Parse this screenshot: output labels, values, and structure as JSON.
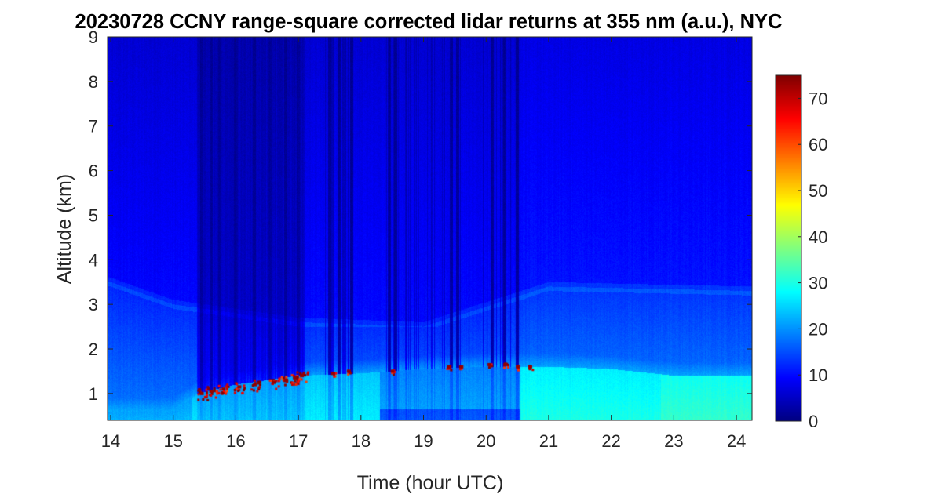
{
  "chart_data": {
    "type": "heatmap",
    "title": "20230728 CCNY range-square corrected lidar returns at 355 nm (a.u.), NYC",
    "xlabel": "Time (hour UTC)",
    "ylabel": "Altitude (km)",
    "xlim": [
      13.95,
      24.25
    ],
    "ylim": [
      0.4,
      9
    ],
    "x_ticks": [
      14,
      15,
      16,
      17,
      18,
      19,
      20,
      21,
      22,
      23,
      24
    ],
    "y_ticks": [
      1,
      2,
      3,
      4,
      5,
      6,
      7,
      8,
      9
    ],
    "colorbar": {
      "colormap": "jet",
      "range": [
        0,
        75
      ],
      "ticks": [
        0,
        10,
        20,
        30,
        40,
        50,
        60,
        70
      ],
      "placement": "right"
    },
    "grid": false,
    "features": {
      "boundary_layer_top_km": [
        {
          "time": 14.0,
          "altitude": 0.6
        },
        {
          "time": 15.0,
          "altitude": 0.6
        },
        {
          "time": 15.4,
          "altitude": 1.0
        },
        {
          "time": 16.0,
          "altitude": 1.2
        },
        {
          "time": 17.0,
          "altitude": 1.4
        },
        {
          "time": 18.0,
          "altitude": 1.45
        },
        {
          "time": 19.0,
          "altitude": 1.55
        },
        {
          "time": 20.0,
          "altitude": 1.6
        },
        {
          "time": 21.0,
          "altitude": 1.6
        },
        {
          "time": 22.0,
          "altitude": 1.55
        },
        {
          "time": 23.0,
          "altitude": 1.4
        },
        {
          "time": 24.25,
          "altitude": 1.4
        }
      ],
      "aerosol_layer_top_km": [
        {
          "time": 14.0,
          "altitude": 3.5
        },
        {
          "time": 15.0,
          "altitude": 3.0
        },
        {
          "time": 17.0,
          "altitude": 2.6
        },
        {
          "time": 19.0,
          "altitude": 2.5
        },
        {
          "time": 21.0,
          "altitude": 3.4
        },
        {
          "time": 24.25,
          "altitude": 3.3
        }
      ],
      "cloud_returns": [
        {
          "time": 15.45,
          "altitude": 1.0
        },
        {
          "time": 15.6,
          "altitude": 1.05
        },
        {
          "time": 15.8,
          "altitude": 1.1
        },
        {
          "time": 16.05,
          "altitude": 1.15
        },
        {
          "time": 16.3,
          "altitude": 1.2
        },
        {
          "time": 16.6,
          "altitude": 1.25
        },
        {
          "time": 16.8,
          "altitude": 1.3
        },
        {
          "time": 16.95,
          "altitude": 1.35
        },
        {
          "time": 17.05,
          "altitude": 1.4
        },
        {
          "time": 17.55,
          "altitude": 1.45
        },
        {
          "time": 17.8,
          "altitude": 1.5
        },
        {
          "time": 18.5,
          "altitude": 1.5
        },
        {
          "time": 19.4,
          "altitude": 1.6
        },
        {
          "time": 19.6,
          "altitude": 1.6
        },
        {
          "time": 20.05,
          "altitude": 1.65
        },
        {
          "time": 20.3,
          "altitude": 1.65
        },
        {
          "time": 20.5,
          "altitude": 1.6
        },
        {
          "time": 20.7,
          "altitude": 1.6
        }
      ],
      "signal_dropout_times": [
        15.45,
        15.6,
        15.75,
        16.0,
        16.3,
        16.55,
        16.8,
        17.0,
        17.5,
        17.65,
        17.85,
        18.45,
        18.55,
        19.45,
        19.55,
        20.1,
        20.3,
        20.5
      ]
    }
  }
}
